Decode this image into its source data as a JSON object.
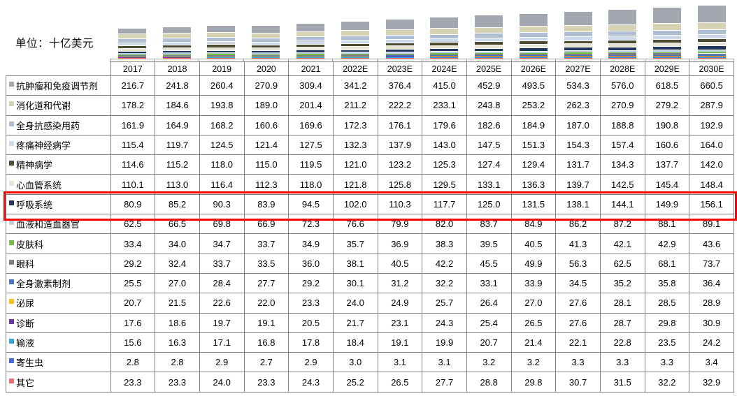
{
  "unit_label": "单位：十亿美元",
  "highlight": {
    "row_label": "呼吸系统",
    "color": "#fe0000"
  },
  "chart_data": {
    "type": "bar",
    "stacked": true,
    "title": "",
    "unit": "十亿美元",
    "legend_position": "table-row-labels",
    "grid": false,
    "categories": [
      "2017",
      "2018",
      "2019",
      "2020",
      "2021",
      "2022E",
      "2023E",
      "2024E",
      "2025E",
      "2026E",
      "2027E",
      "2028E",
      "2029E",
      "2030E"
    ],
    "series": [
      {
        "name": "抗肿瘤和免疫调节剂",
        "color": "#a3a7b0",
        "values": [
          216.7,
          241.8,
          260.4,
          270.9,
          309.4,
          341.2,
          376.4,
          415.0,
          452.9,
          493.5,
          534.3,
          576.0,
          618.5,
          660.5
        ]
      },
      {
        "name": "消化道和代谢",
        "color": "#d6d3b5",
        "values": [
          178.2,
          184.6,
          193.8,
          189.0,
          201.4,
          211.2,
          222.2,
          233.1,
          243.8,
          253.2,
          262.3,
          270.9,
          279.2,
          287.9
        ]
      },
      {
        "name": "全身抗感染用药",
        "color": "#afbed2",
        "values": [
          161.9,
          164.9,
          168.2,
          160.6,
          169.6,
          172.3,
          176.1,
          179.6,
          182.6,
          184.9,
          187.0,
          188.8,
          190.8,
          192.9
        ]
      },
      {
        "name": "疼痛神经病学",
        "color": "#ccd9ea",
        "values": [
          115.4,
          119.7,
          124.5,
          121.4,
          127.5,
          132.3,
          137.9,
          143.0,
          147.5,
          151.3,
          154.3,
          157.4,
          160.6,
          164.0
        ]
      },
      {
        "name": "精神病学",
        "color": "#4a4b30",
        "values": [
          114.6,
          115.2,
          118.0,
          115.0,
          119.5,
          121.0,
          123.2,
          125.3,
          127.4,
          129.4,
          131.7,
          134.3,
          137.7,
          142.0
        ]
      },
      {
        "name": "心血管系统",
        "color": "#e6e5d4",
        "values": [
          110.1,
          113.0,
          116.4,
          112.3,
          118.0,
          121.8,
          125.8,
          129.5,
          133.1,
          136.3,
          139.7,
          142.5,
          145.4,
          148.4
        ]
      },
      {
        "name": "呼吸系统",
        "color": "#20355c",
        "values": [
          80.9,
          85.2,
          90.3,
          83.9,
          94.5,
          102.0,
          110.3,
          117.7,
          125.0,
          131.5,
          138.1,
          144.1,
          149.9,
          156.1
        ]
      },
      {
        "name": "血液和造血器官",
        "color": "#b9cde3",
        "values": [
          62.5,
          66.5,
          69.8,
          66.9,
          72.3,
          76.6,
          79.9,
          82.0,
          83.7,
          84.9,
          86.2,
          87.2,
          88.1,
          89.1
        ]
      },
      {
        "name": "皮肤科",
        "color": "#71bf44",
        "values": [
          33.4,
          34.0,
          34.7,
          33.7,
          34.9,
          35.7,
          36.9,
          38.3,
          39.5,
          40.5,
          41.3,
          42.1,
          42.9,
          43.6
        ]
      },
      {
        "name": "眼科",
        "color": "#7f7f7f",
        "values": [
          29.2,
          32.4,
          33.7,
          33.5,
          36.0,
          38.1,
          40.5,
          42.2,
          45.5,
          49.9,
          56.3,
          62.5,
          68.1,
          73.7
        ]
      },
      {
        "name": "全身激素制剂",
        "color": "#4472c4",
        "values": [
          25.5,
          27.0,
          28.4,
          27.7,
          29.2,
          30.1,
          31.2,
          32.2,
          33.1,
          33.9,
          34.5,
          35.2,
          35.8,
          36.4
        ]
      },
      {
        "name": "泌尿",
        "color": "#ffc000",
        "values": [
          20.7,
          21.5,
          22.6,
          22.0,
          23.3,
          24.0,
          24.9,
          25.7,
          26.4,
          27.0,
          27.6,
          28.1,
          28.5,
          28.9
        ]
      },
      {
        "name": "诊断",
        "color": "#7030a0",
        "values": [
          17.6,
          18.6,
          19.7,
          19.1,
          20.5,
          21.7,
          23.1,
          24.3,
          25.4,
          26.5,
          27.6,
          28.7,
          29.8,
          30.9
        ]
      },
      {
        "name": "输液",
        "color": "#2ea8e0",
        "values": [
          15.6,
          16.3,
          17.1,
          16.8,
          17.8,
          18.4,
          19.1,
          19.9,
          20.7,
          21.4,
          22.1,
          22.8,
          23.5,
          24.2
        ]
      },
      {
        "name": "寄生虫",
        "color": "#4169e1",
        "values": [
          2.8,
          2.8,
          2.9,
          2.7,
          2.9,
          3.0,
          3.1,
          3.1,
          3.2,
          3.2,
          3.3,
          3.3,
          3.3,
          3.4
        ]
      },
      {
        "name": "其它",
        "color": "#f0696e",
        "values": [
          23.3,
          23.3,
          24.0,
          23.3,
          24.3,
          25.2,
          26.5,
          27.7,
          28.8,
          29.8,
          30.7,
          31.5,
          32.2,
          32.9
        ]
      }
    ]
  }
}
